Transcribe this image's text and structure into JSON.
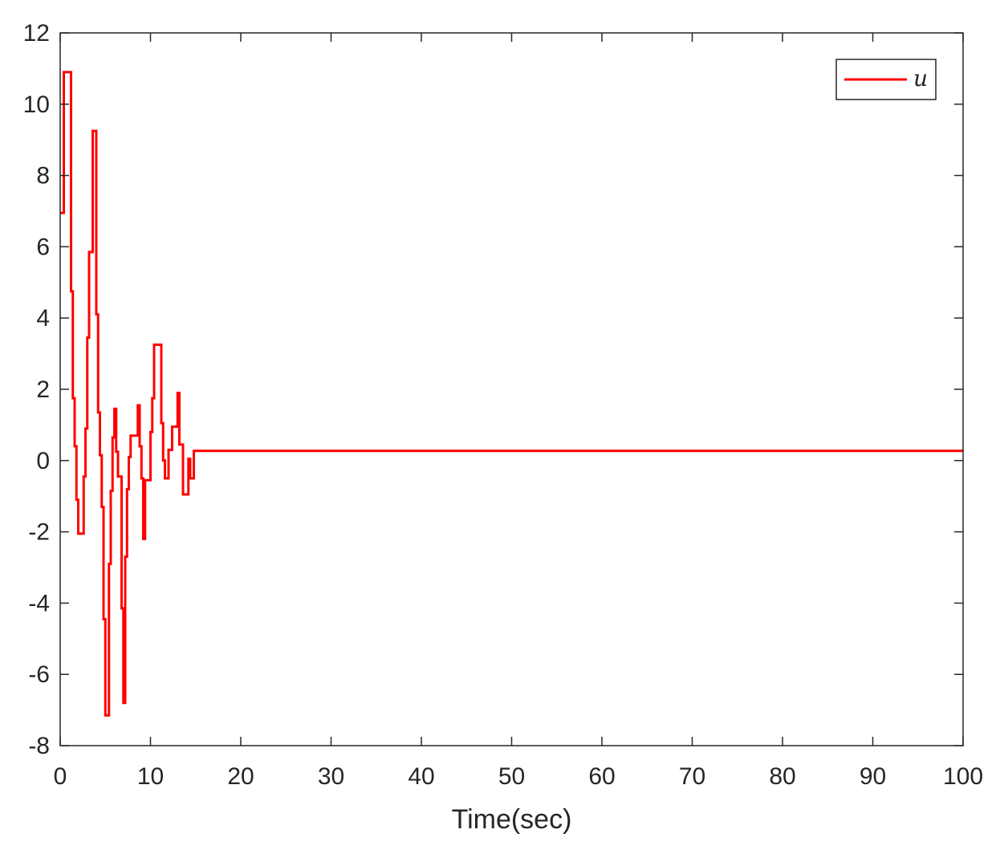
{
  "chart_data": {
    "type": "line",
    "title": "",
    "xlabel": "Time(sec)",
    "ylabel": "",
    "xlim": [
      0,
      100
    ],
    "ylim": [
      -8,
      12
    ],
    "xticks": [
      0,
      10,
      20,
      30,
      40,
      50,
      60,
      70,
      80,
      90,
      100
    ],
    "yticks": [
      -8,
      -6,
      -4,
      -2,
      0,
      2,
      4,
      6,
      8,
      10,
      12
    ],
    "grid": false,
    "legend": {
      "position": "top-right",
      "entries": [
        "u"
      ]
    },
    "series": [
      {
        "name": "u",
        "color": "#ff0000",
        "step": true,
        "x": [
          0,
          0.4,
          1.2,
          1.4,
          1.6,
          1.8,
          2.0,
          2.6,
          2.8,
          3.0,
          3.2,
          3.6,
          4.0,
          4.2,
          4.4,
          4.6,
          4.8,
          5.0,
          5.4,
          5.6,
          5.8,
          6.0,
          6.2,
          6.4,
          6.8,
          7.0,
          7.2,
          7.4,
          7.6,
          7.8,
          8.6,
          8.8,
          9.0,
          9.2,
          9.4,
          10.0,
          10.2,
          10.4,
          11.2,
          11.4,
          11.6,
          12.0,
          12.4,
          13.0,
          13.2,
          13.6,
          14.2,
          14.4,
          14.8,
          15.6,
          16.2,
          16.6,
          17.6,
          19.2,
          23.8,
          100
        ],
        "y": [
          6.95,
          10.9,
          4.75,
          1.75,
          0.4,
          -1.1,
          -2.05,
          -0.45,
          0.9,
          3.45,
          5.85,
          9.25,
          4.1,
          1.35,
          0.15,
          -1.3,
          -4.45,
          -7.15,
          -2.9,
          -0.85,
          0.65,
          1.45,
          0.25,
          -0.45,
          -4.15,
          -6.8,
          -2.7,
          -0.8,
          0.1,
          0.7,
          1.55,
          0.4,
          -0.5,
          -2.2,
          -0.55,
          0.8,
          1.75,
          3.25,
          1.05,
          0.0,
          -0.5,
          0.3,
          0.95,
          1.9,
          0.45,
          -0.95,
          0.05,
          -0.5,
          0.27,
          0.27,
          0.27,
          0.27,
          0.27,
          0.27,
          0.27,
          0.27
        ]
      }
    ]
  }
}
